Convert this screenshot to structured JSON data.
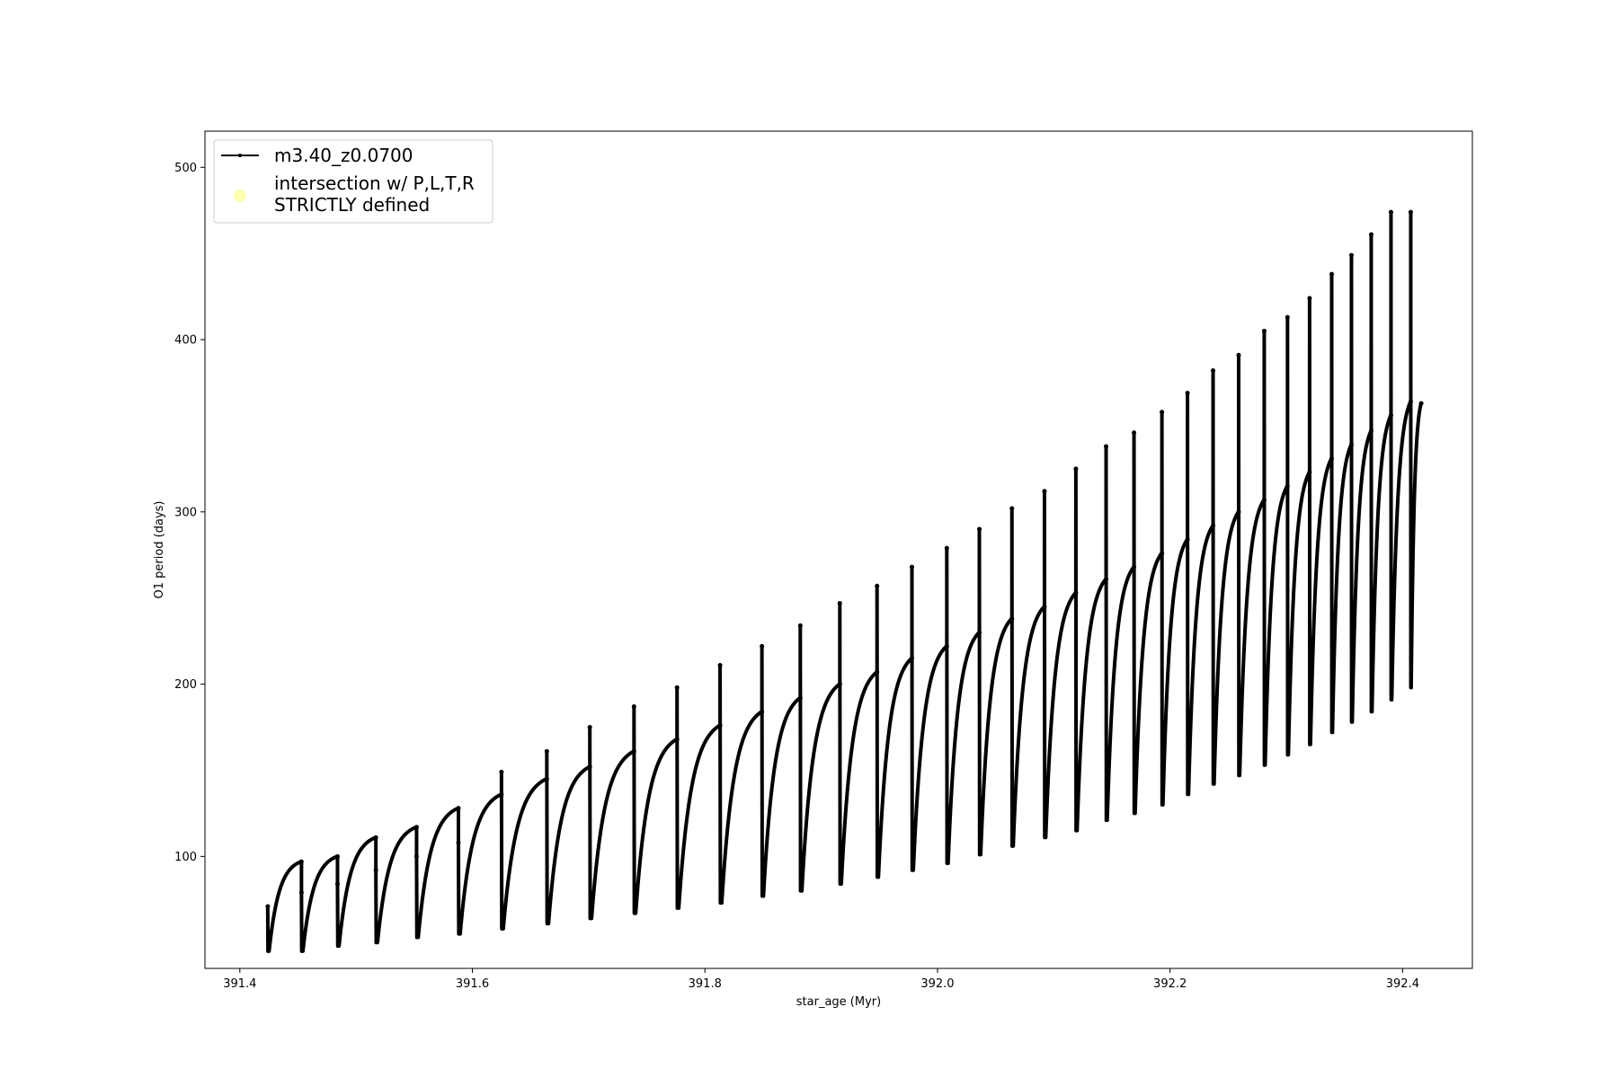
{
  "chart_data": {
    "type": "line",
    "xlabel": "star_age (Myr)",
    "ylabel": "O1 period (days)",
    "xlim": [
      391.37,
      392.46
    ],
    "ylim": [
      35,
      521
    ],
    "xticks": [
      {
        "value": 391.4,
        "label": "391.4"
      },
      {
        "value": 391.6,
        "label": "391.6"
      },
      {
        "value": 391.8,
        "label": "391.8"
      },
      {
        "value": 392.0,
        "label": "392.0"
      },
      {
        "value": 392.2,
        "label": "392.2"
      },
      {
        "value": 392.4,
        "label": "392.4"
      }
    ],
    "yticks": [
      {
        "value": 100,
        "label": "100"
      },
      {
        "value": 200,
        "label": "200"
      },
      {
        "value": 300,
        "label": "300"
      },
      {
        "value": 400,
        "label": "400"
      },
      {
        "value": 500,
        "label": "500"
      }
    ],
    "grid": false,
    "legend_position": "top-left",
    "series": [
      {
        "name": "m3.40_z0.0700",
        "color": "#000000",
        "marker": "dot",
        "cycles": [
          {
            "start": 391.424,
            "end": 391.453,
            "base": 45,
            "peak": 97,
            "spike": 71
          },
          {
            "start": 391.453,
            "end": 391.484,
            "base": 45,
            "peak": 100,
            "spike": 79
          },
          {
            "start": 391.484,
            "end": 391.517,
            "base": 48,
            "peak": 111,
            "spike": 84
          },
          {
            "start": 391.517,
            "end": 391.552,
            "base": 50,
            "peak": 117,
            "spike": 92
          },
          {
            "start": 391.552,
            "end": 391.588,
            "base": 53,
            "peak": 128,
            "spike": 100
          },
          {
            "start": 391.588,
            "end": 391.625,
            "base": 55,
            "peak": 136,
            "spike": 108
          },
          {
            "start": 391.625,
            "end": 391.664,
            "base": 58,
            "peak": 145,
            "spike": 149
          },
          {
            "start": 391.664,
            "end": 391.701,
            "base": 61,
            "peak": 152,
            "spike": 161
          },
          {
            "start": 391.701,
            "end": 391.739,
            "base": 64,
            "peak": 161,
            "spike": 175
          },
          {
            "start": 391.739,
            "end": 391.776,
            "base": 67,
            "peak": 168,
            "spike": 187
          },
          {
            "start": 391.776,
            "end": 391.813,
            "base": 70,
            "peak": 176,
            "spike": 198
          },
          {
            "start": 391.813,
            "end": 391.849,
            "base": 73,
            "peak": 184,
            "spike": 211
          },
          {
            "start": 391.849,
            "end": 391.882,
            "base": 77,
            "peak": 192,
            "spike": 222
          },
          {
            "start": 391.882,
            "end": 391.916,
            "base": 80,
            "peak": 200,
            "spike": 234
          },
          {
            "start": 391.916,
            "end": 391.948,
            "base": 84,
            "peak": 207,
            "spike": 247
          },
          {
            "start": 391.948,
            "end": 391.978,
            "base": 88,
            "peak": 215,
            "spike": 257
          },
          {
            "start": 391.978,
            "end": 392.008,
            "base": 92,
            "peak": 222,
            "spike": 268
          },
          {
            "start": 392.008,
            "end": 392.036,
            "base": 96,
            "peak": 230,
            "spike": 279
          },
          {
            "start": 392.036,
            "end": 392.064,
            "base": 101,
            "peak": 238,
            "spike": 290
          },
          {
            "start": 392.064,
            "end": 392.092,
            "base": 106,
            "peak": 245,
            "spike": 302
          },
          {
            "start": 392.092,
            "end": 392.119,
            "base": 111,
            "peak": 253,
            "spike": 312
          },
          {
            "start": 392.119,
            "end": 392.145,
            "base": 115,
            "peak": 261,
            "spike": 325
          },
          {
            "start": 392.145,
            "end": 392.169,
            "base": 121,
            "peak": 268,
            "spike": 338
          },
          {
            "start": 392.169,
            "end": 392.193,
            "base": 125,
            "peak": 276,
            "spike": 346
          },
          {
            "start": 392.193,
            "end": 392.215,
            "base": 130,
            "peak": 284,
            "spike": 358
          },
          {
            "start": 392.215,
            "end": 392.237,
            "base": 136,
            "peak": 292,
            "spike": 369
          },
          {
            "start": 392.237,
            "end": 392.259,
            "base": 142,
            "peak": 300,
            "spike": 382
          },
          {
            "start": 392.259,
            "end": 392.281,
            "base": 147,
            "peak": 307,
            "spike": 391
          },
          {
            "start": 392.281,
            "end": 392.301,
            "base": 153,
            "peak": 315,
            "spike": 405
          },
          {
            "start": 392.301,
            "end": 392.32,
            "base": 159,
            "peak": 323,
            "spike": 413
          },
          {
            "start": 392.32,
            "end": 392.339,
            "base": 165,
            "peak": 331,
            "spike": 424
          },
          {
            "start": 392.339,
            "end": 392.356,
            "base": 172,
            "peak": 339,
            "spike": 438
          },
          {
            "start": 392.356,
            "end": 392.373,
            "base": 178,
            "peak": 347,
            "spike": 449
          },
          {
            "start": 392.373,
            "end": 392.39,
            "base": 184,
            "peak": 356,
            "spike": 461
          },
          {
            "start": 392.39,
            "end": 392.407,
            "base": 191,
            "peak": 364,
            "spike": 474
          },
          {
            "start": 392.407,
            "end": 392.416,
            "base": 198,
            "peak": 363,
            "spike": 474
          }
        ]
      },
      {
        "name": "intersection w/ P,L,T,R STRICTLY defined",
        "name_lines": [
          "intersection w/ P,L,T,R",
          "STRICTLY defined"
        ],
        "color": "#ffff99",
        "marker": "circle",
        "points": []
      }
    ]
  }
}
